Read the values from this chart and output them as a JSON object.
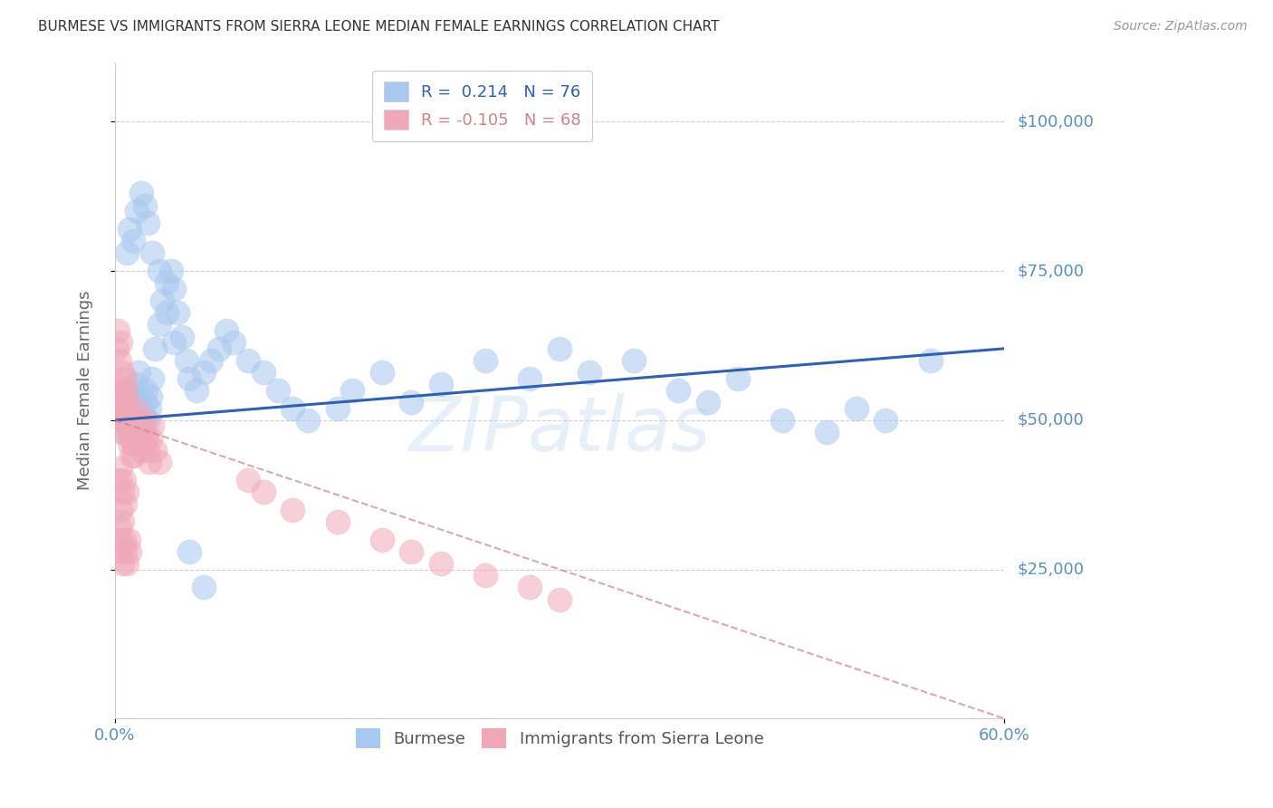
{
  "title": "BURMESE VS IMMIGRANTS FROM SIERRA LEONE MEDIAN FEMALE EARNINGS CORRELATION CHART",
  "source": "Source: ZipAtlas.com",
  "ylabel": "Median Female Earnings",
  "ytick_labels": [
    "$25,000",
    "$50,000",
    "$75,000",
    "$100,000"
  ],
  "ytick_values": [
    25000,
    50000,
    75000,
    100000
  ],
  "ylim": [
    0,
    110000
  ],
  "xlim": [
    0.0,
    0.6
  ],
  "burmese_color": "#a8c8f0",
  "sierraleone_color": "#f0a8b8",
  "burmese_line_color": "#3060b0",
  "sierraleone_line_color": "#d08090",
  "grid_color": "#cccccc",
  "background_color": "#ffffff",
  "title_color": "#333333",
  "ytick_color": "#5a8fc4",
  "xtick_color": "#5a8fc4",
  "watermark": "ZIPatlas",
  "burmese_x": [
    0.002,
    0.003,
    0.004,
    0.005,
    0.006,
    0.007,
    0.008,
    0.009,
    0.01,
    0.011,
    0.012,
    0.013,
    0.014,
    0.015,
    0.016,
    0.017,
    0.018,
    0.019,
    0.02,
    0.021,
    0.022,
    0.023,
    0.024,
    0.025,
    0.027,
    0.03,
    0.032,
    0.035,
    0.038,
    0.04,
    0.042,
    0.045,
    0.048,
    0.05,
    0.055,
    0.06,
    0.065,
    0.07,
    0.075,
    0.08,
    0.09,
    0.1,
    0.11,
    0.12,
    0.13,
    0.15,
    0.16,
    0.18,
    0.2,
    0.22,
    0.25,
    0.28,
    0.3,
    0.32,
    0.35,
    0.38,
    0.4,
    0.42,
    0.45,
    0.48,
    0.5,
    0.52,
    0.55,
    0.008,
    0.01,
    0.012,
    0.015,
    0.018,
    0.02,
    0.022,
    0.025,
    0.03,
    0.035,
    0.04,
    0.05,
    0.06
  ],
  "burmese_y": [
    52000,
    50000,
    54000,
    48000,
    51000,
    53000,
    49000,
    52000,
    55000,
    50000,
    48000,
    53000,
    56000,
    54000,
    58000,
    52000,
    49000,
    51000,
    53000,
    55000,
    50000,
    52000,
    54000,
    57000,
    62000,
    66000,
    70000,
    73000,
    75000,
    72000,
    68000,
    64000,
    60000,
    57000,
    55000,
    58000,
    60000,
    62000,
    65000,
    63000,
    60000,
    58000,
    55000,
    52000,
    50000,
    52000,
    55000,
    58000,
    53000,
    56000,
    60000,
    57000,
    62000,
    58000,
    60000,
    55000,
    53000,
    57000,
    50000,
    48000,
    52000,
    50000,
    60000,
    78000,
    82000,
    80000,
    85000,
    88000,
    86000,
    83000,
    78000,
    75000,
    68000,
    63000,
    28000,
    22000
  ],
  "sierraleone_x": [
    0.001,
    0.002,
    0.003,
    0.004,
    0.005,
    0.006,
    0.007,
    0.008,
    0.009,
    0.01,
    0.011,
    0.012,
    0.013,
    0.014,
    0.015,
    0.016,
    0.017,
    0.018,
    0.019,
    0.02,
    0.021,
    0.022,
    0.023,
    0.024,
    0.025,
    0.027,
    0.03,
    0.001,
    0.002,
    0.003,
    0.004,
    0.005,
    0.006,
    0.007,
    0.008,
    0.009,
    0.01,
    0.011,
    0.012,
    0.013,
    0.014,
    0.015,
    0.003,
    0.004,
    0.005,
    0.006,
    0.007,
    0.008,
    0.09,
    0.1,
    0.12,
    0.15,
    0.18,
    0.2,
    0.22,
    0.25,
    0.28,
    0.3,
    0.003,
    0.004,
    0.005,
    0.003,
    0.004,
    0.005,
    0.006,
    0.007,
    0.008,
    0.009,
    0.01
  ],
  "sierraleone_y": [
    52000,
    56000,
    54000,
    50000,
    48000,
    52000,
    55000,
    50000,
    48000,
    46000,
    44000,
    48000,
    50000,
    52000,
    49000,
    47000,
    45000,
    46000,
    48000,
    50000,
    47000,
    45000,
    43000,
    47000,
    49000,
    45000,
    43000,
    62000,
    65000,
    60000,
    63000,
    58000,
    55000,
    57000,
    53000,
    51000,
    49000,
    47000,
    46000,
    44000,
    48000,
    50000,
    40000,
    42000,
    38000,
    40000,
    36000,
    38000,
    40000,
    38000,
    35000,
    33000,
    30000,
    28000,
    26000,
    24000,
    22000,
    20000,
    30000,
    28000,
    26000,
    32000,
    35000,
    33000,
    30000,
    28000,
    26000,
    30000,
    28000
  ]
}
